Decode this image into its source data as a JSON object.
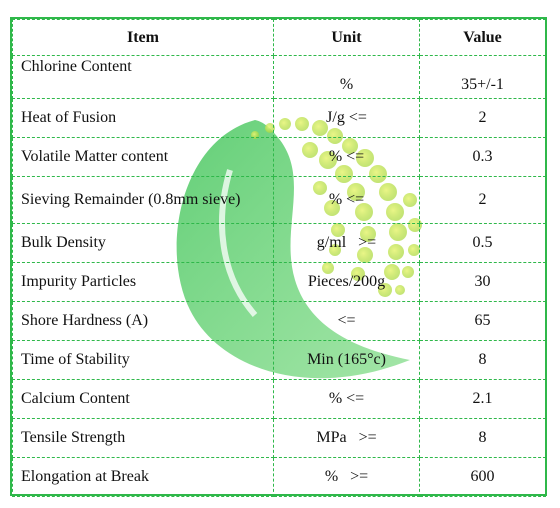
{
  "table": {
    "headers": {
      "item": "Item",
      "unit": "Unit",
      "value": "Value"
    },
    "rows": [
      {
        "item": "Chlorine Content",
        "unit": "%",
        "value": "35+/-1"
      },
      {
        "item": "Heat of Fusion",
        "unit": "J/g <=",
        "value": "2"
      },
      {
        "item": "Volatile Matter content",
        "unit": "% <=",
        "value": "0.3"
      },
      {
        "item": "Sieving Remainder (0.8mm sieve)",
        "unit": "% <=",
        "value": "2"
      },
      {
        "item": "Bulk Density",
        "unit": "g/ml   >=",
        "value": "0.5"
      },
      {
        "item": "Impurity Particles",
        "unit": "Pieces/200g",
        "value": "30"
      },
      {
        "item": "Shore Hardness (A)",
        "unit": "<=",
        "value": "65"
      },
      {
        "item": "Time of Stability",
        "unit": "Min (165°c)",
        "value": "8"
      },
      {
        "item": "Calcium Content",
        "unit": "% <=",
        "value": "2.1"
      },
      {
        "item": "Tensile Strength",
        "unit": "MPa   >=",
        "value": "8"
      },
      {
        "item": "Elongation at Break",
        "unit": "%   >=",
        "value": "600"
      }
    ]
  },
  "colors": {
    "border": "#2fb84a",
    "watermark_green": "#3cc24c",
    "watermark_yellow": "#c8e63c"
  }
}
